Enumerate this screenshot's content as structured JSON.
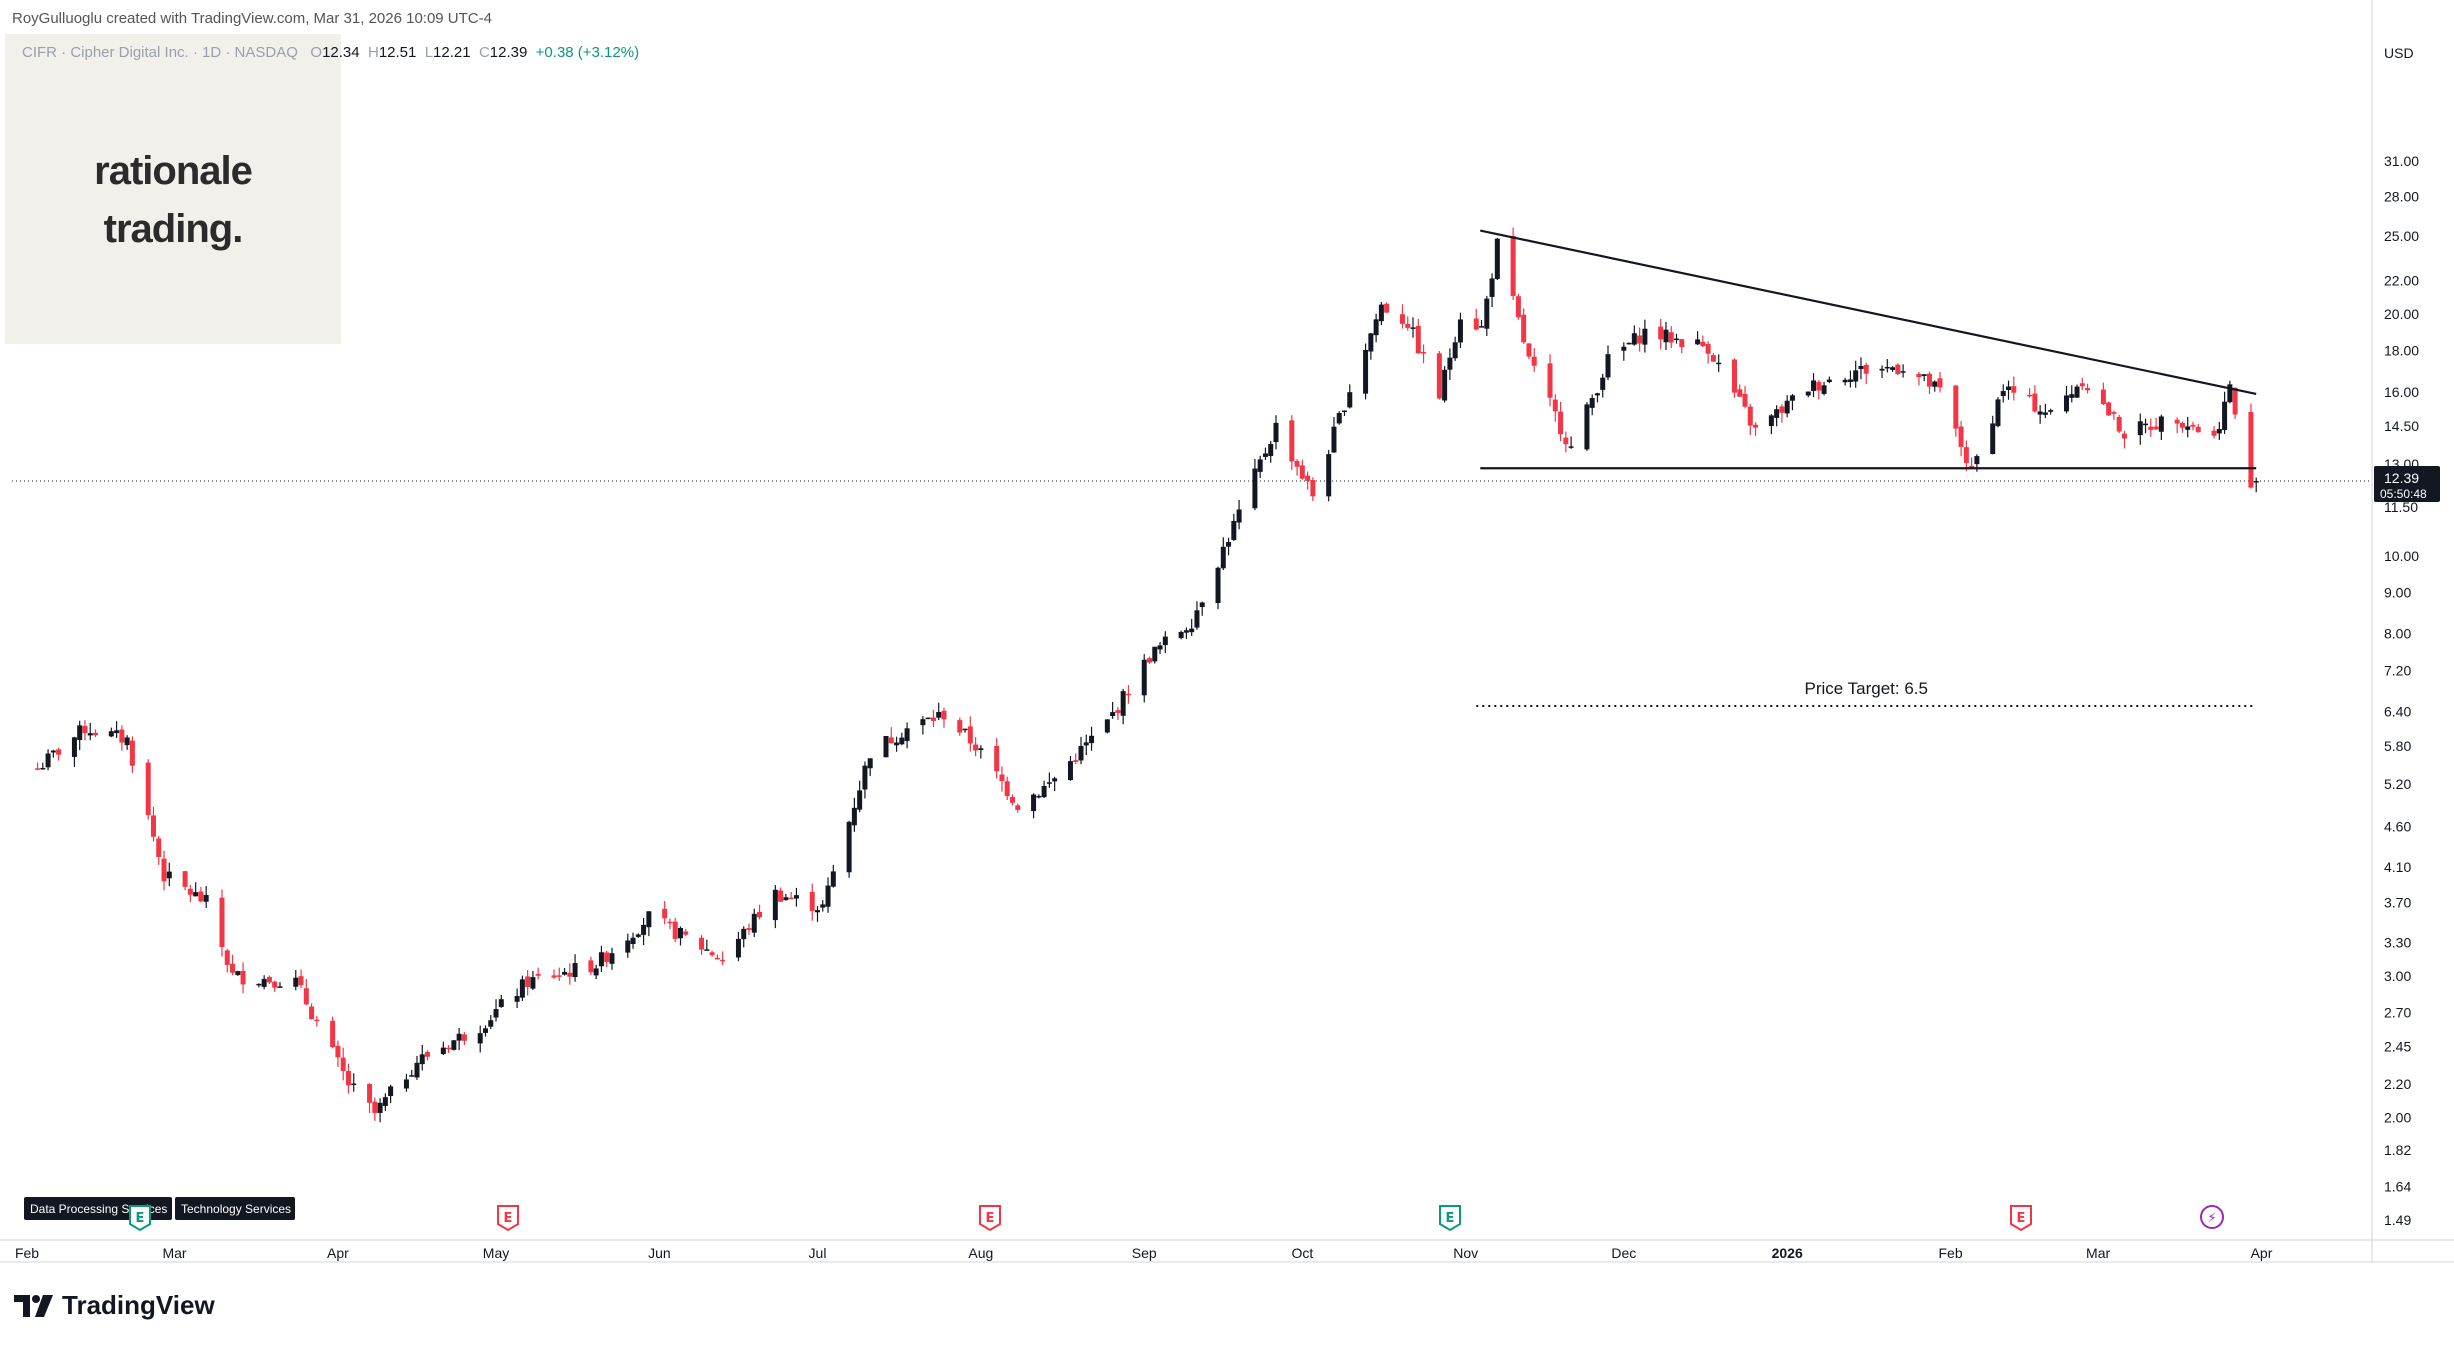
{
  "header": {
    "credit": "RoyGulluoglu created with TradingView.com, Mar 31, 2026 10:09 UTC-4",
    "symbol": "CIFR · Cipher Digital Inc. · 1D · NASDAQ",
    "o_label": "O",
    "o_value": "12.34",
    "h_label": "H",
    "h_value": "12.51",
    "l_label": "L",
    "l_value": "12.21",
    "c_label": "C",
    "c_value": "12.39",
    "change": "+0.38 (+3.12%)"
  },
  "logo": {
    "line1": "rationale",
    "line2": "trading."
  },
  "branding": {
    "name": "TradingView"
  },
  "colors": {
    "up": "#089981",
    "down": "#f23645",
    "dark": "#131722",
    "accent": "#9c27b0"
  },
  "chart_data": {
    "type": "candlestick",
    "symbol": "CIFR",
    "timeframe": "1D",
    "scale": "log",
    "currency": "USD",
    "y_ticks": [
      "31.00",
      "28.00",
      "25.00",
      "22.00",
      "20.00",
      "18.00",
      "16.00",
      "14.50",
      "13.00",
      "11.50",
      "10.00",
      "9.00",
      "8.00",
      "7.20",
      "6.40",
      "5.80",
      "5.20",
      "4.60",
      "4.10",
      "3.70",
      "3.30",
      "3.00",
      "2.70",
      "2.45",
      "2.20",
      "2.00",
      "1.82",
      "1.64",
      "1.49"
    ],
    "x_ticks": [
      "Feb",
      "Mar",
      "Apr",
      "May",
      "Jun",
      "Jul",
      "Aug",
      "Sep",
      "Oct",
      "Nov",
      "Dec",
      "2026",
      "Feb",
      "Mar",
      "Apr"
    ],
    "last_price": "12.39",
    "countdown": "05:50:48",
    "annotation": "Price Target: 6.5",
    "price_target": 6.5,
    "tags": [
      "Data Processing Services",
      "Technology Services"
    ],
    "events": [
      "E",
      "E",
      "E",
      "E",
      "⚡"
    ],
    "trendlines": [
      {
        "name": "descending-resistance",
        "from": [
          "2025-11-03",
          25.4
        ],
        "to": [
          "2026-03-31",
          15.9
        ]
      },
      {
        "name": "horizontal-support",
        "from": [
          "2025-11-03",
          12.85
        ],
        "to": [
          "2026-03-31",
          12.85
        ]
      }
    ],
    "anchors": [
      [
        "2025-02-01",
        5.3
      ],
      [
        "2025-02-12",
        6.1
      ],
      [
        "2025-02-20",
        5.9
      ],
      [
        "2025-02-27",
        4.0
      ],
      [
        "2025-03-07",
        3.7
      ],
      [
        "2025-03-12",
        3.0
      ],
      [
        "2025-03-24",
        2.95
      ],
      [
        "2025-04-03",
        2.2
      ],
      [
        "2025-04-08",
        2.02
      ],
      [
        "2025-04-16",
        2.35
      ],
      [
        "2025-04-28",
        2.6
      ],
      [
        "2025-05-07",
        2.95
      ],
      [
        "2025-05-20",
        3.1
      ],
      [
        "2025-05-30",
        3.55
      ],
      [
        "2025-06-13",
        3.15
      ],
      [
        "2025-06-23",
        3.8
      ],
      [
        "2025-07-02",
        3.65
      ],
      [
        "2025-07-11",
        5.7
      ],
      [
        "2025-07-18",
        6.1
      ],
      [
        "2025-07-25",
        6.35
      ],
      [
        "2025-07-31",
        5.8
      ],
      [
        "2025-08-08",
        4.9
      ],
      [
        "2025-08-14",
        5.2
      ],
      [
        "2025-08-25",
        6.2
      ],
      [
        "2025-09-02",
        7.5
      ],
      [
        "2025-09-10",
        8.3
      ],
      [
        "2025-09-19",
        11.3
      ],
      [
        "2025-09-26",
        14.5
      ],
      [
        "2025-10-03",
        11.9
      ],
      [
        "2025-10-09",
        15.5
      ],
      [
        "2025-10-16",
        20.5
      ],
      [
        "2025-10-21",
        19.5
      ],
      [
        "2025-10-27",
        15.8
      ],
      [
        "2025-10-31",
        20.0
      ],
      [
        "2025-11-04",
        19.2
      ],
      [
        "2025-11-07",
        24.4
      ],
      [
        "2025-11-13",
        17.5
      ],
      [
        "2025-11-21",
        13.6
      ],
      [
        "2025-11-28",
        17.5
      ],
      [
        "2025-12-05",
        19.0
      ],
      [
        "2025-12-17",
        18.2
      ],
      [
        "2025-12-26",
        14.3
      ],
      [
        "2026-01-05",
        16.2
      ],
      [
        "2026-01-14",
        17.0
      ],
      [
        "2026-01-23",
        17.2
      ],
      [
        "2026-01-30",
        16.0
      ],
      [
        "2026-02-05",
        12.7
      ],
      [
        "2026-02-11",
        16.2
      ],
      [
        "2026-02-20",
        15.0
      ],
      [
        "2026-02-26",
        16.6
      ],
      [
        "2026-03-06",
        14.2
      ],
      [
        "2026-03-16",
        14.9
      ],
      [
        "2026-03-23",
        14.0
      ],
      [
        "2026-03-26",
        16.2
      ],
      [
        "2026-03-30",
        12.0
      ],
      [
        "2026-03-31",
        12.39
      ]
    ]
  }
}
